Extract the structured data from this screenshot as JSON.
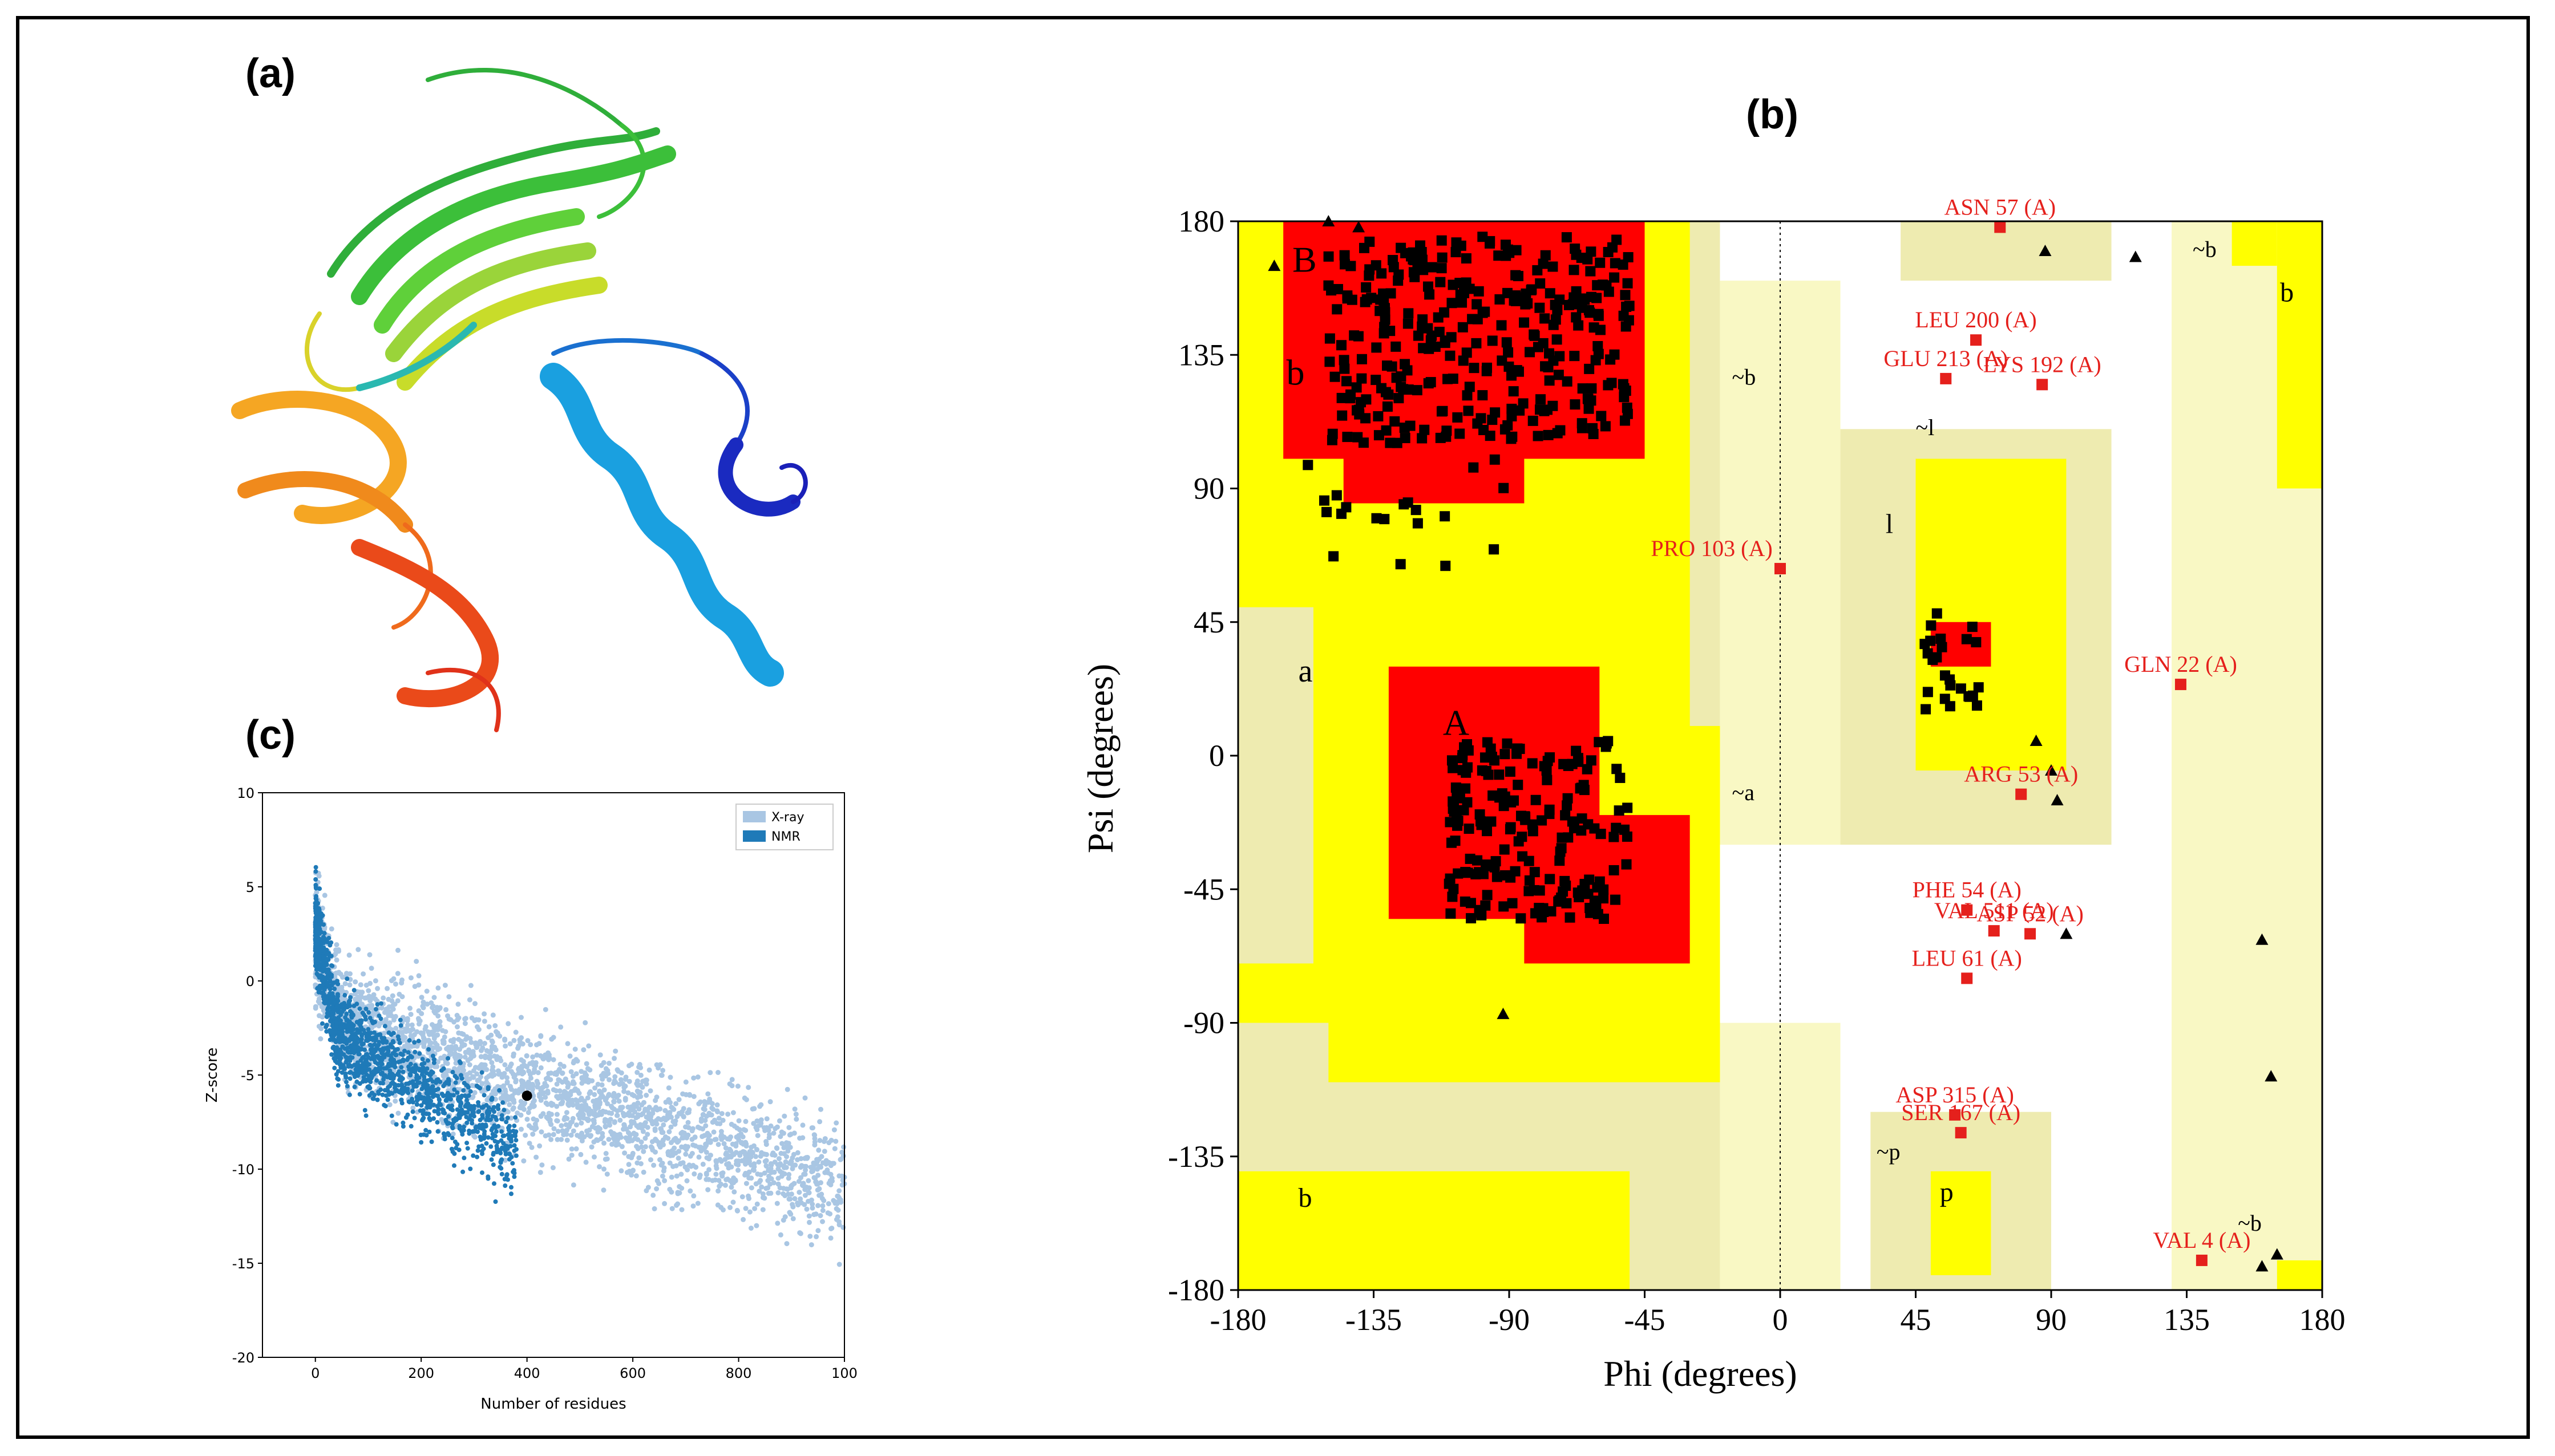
{
  "panels": {
    "a": {
      "label": "(a)"
    },
    "b": {
      "label": "(b)"
    },
    "c": {
      "label": "(c)"
    }
  },
  "ramachandran": {
    "xlabel": "Phi (degrees)",
    "ylabel": "Psi (degrees)",
    "ticks": [
      "-180",
      "-135",
      "-90",
      "-45",
      "0",
      "45",
      "90",
      "135",
      "180"
    ],
    "region_labels": [
      "B",
      "b",
      "a",
      "A",
      "~b",
      "~a",
      "~l",
      "l",
      "~p",
      "p",
      "~b",
      "b",
      "~b",
      "b",
      "b"
    ],
    "outliers": [
      {
        "label": "ASN 57 (A)",
        "phi": 73,
        "psi": 178
      },
      {
        "label": "LEU 200 (A)",
        "phi": 65,
        "psi": 140
      },
      {
        "label": "GLU 213 (A)",
        "phi": 55,
        "psi": 127
      },
      {
        "label": "LYS 192 (A)",
        "phi": 87,
        "psi": 125
      },
      {
        "label": "PRO 103 (A)",
        "phi": 0,
        "psi": 63
      },
      {
        "label": "GLN 22 (A)",
        "phi": 133,
        "psi": 24
      },
      {
        "label": "ARG 53 (A)",
        "phi": 80,
        "psi": -13
      },
      {
        "label": "PHE 54 (A)",
        "phi": 62,
        "psi": -52
      },
      {
        "label": "VAL 511 (A)",
        "phi": 71,
        "psi": -59
      },
      {
        "label": "ASP 52 (A)",
        "phi": 83,
        "psi": -60
      },
      {
        "label": "LEU 61 (A)",
        "phi": 62,
        "psi": -75
      },
      {
        "label": "ASP 315 (A)",
        "phi": 58,
        "psi": -121
      },
      {
        "label": "SER 167 (A)",
        "phi": 60,
        "psi": -127
      },
      {
        "label": "VAL 4 (A)",
        "phi": 140,
        "psi": -170
      }
    ]
  },
  "zscore": {
    "ylabel": "Z-score",
    "xlabel": "Number of residues",
    "legend": [
      "X-ray",
      "NMR"
    ],
    "xticks": [
      "0",
      "200",
      "400",
      "600",
      "800",
      "100"
    ],
    "yticks": [
      "10",
      "5",
      "0",
      "-5",
      "-10",
      "-15",
      "-20"
    ],
    "colors": {
      "xray": "#a9c6e3",
      "nmr": "#1f7ab8"
    },
    "query_point": {
      "residues": 400,
      "z": -6.1
    }
  },
  "chart_data": [
    {
      "type": "scatter",
      "title": "",
      "xlabel": "Phi (degrees)",
      "ylabel": "Psi (degrees)",
      "xlim": [
        -180,
        180
      ],
      "ylim": [
        -180,
        180
      ],
      "series": [
        {
          "name": "",
          "points_outliers": [
            [
              73,
              178
            ],
            [
              65,
              140
            ],
            [
              55,
              127
            ],
            [
              87,
              125
            ],
            [
              0,
              63
            ],
            [
              133,
              24
            ],
            [
              80,
              -13
            ],
            [
              62,
              -52
            ],
            [
              71,
              -59
            ],
            [
              83,
              -60
            ],
            [
              62,
              -75
            ],
            [
              58,
              -121
            ],
            [
              60,
              -127
            ],
            [
              140,
              -170
            ]
          ]
        }
      ]
    },
    {
      "type": "scatter",
      "title": "",
      "xlabel": "Number of residues",
      "ylabel": "Z-score",
      "xlim": [
        -100,
        1000
      ],
      "ylim": [
        -20,
        10
      ],
      "series": [
        {
          "name": "X-ray",
          "values": []
        },
        {
          "name": "NMR",
          "values": []
        }
      ],
      "highlight": [
        400,
        -6.1
      ]
    }
  ]
}
